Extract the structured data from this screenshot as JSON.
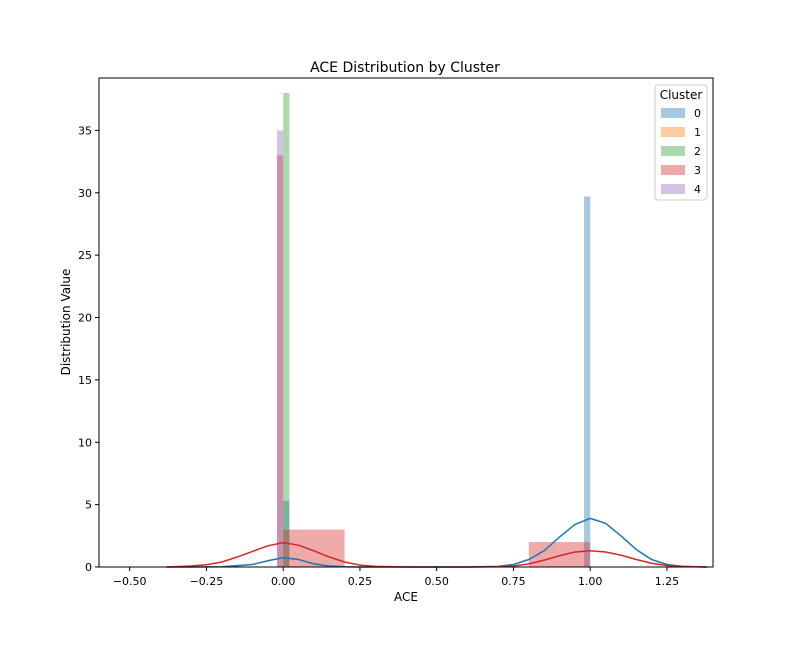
{
  "chart_data": {
    "type": "bar",
    "title": "ACE Distribution by Cluster",
    "xlabel": "ACE",
    "ylabel": "Distribution Value",
    "xlim": [
      -0.6,
      1.4
    ],
    "ylim": [
      0,
      39.2
    ],
    "xticks": [
      -0.5,
      -0.25,
      0.0,
      0.25,
      0.5,
      0.75,
      1.0,
      1.25
    ],
    "xtick_labels": [
      "−0.50",
      "−0.25",
      "0.00",
      "0.25",
      "0.50",
      "0.75",
      "1.00",
      "1.25"
    ],
    "yticks": [
      0,
      5,
      10,
      15,
      20,
      25,
      30,
      35
    ],
    "ytick_labels": [
      "0",
      "5",
      "10",
      "15",
      "20",
      "25",
      "30",
      "35"
    ],
    "grid": false,
    "legend": {
      "title": "Cluster",
      "placement": "top-right",
      "labels": [
        "0",
        "1",
        "2",
        "3",
        "4"
      ]
    },
    "series": [
      {
        "name": "0",
        "color": "#1f77b4",
        "bars": [
          {
            "x0": 0.0,
            "x1": 0.02,
            "height": 5.3
          },
          {
            "x0": 0.98,
            "x1": 1.0,
            "height": 29.7
          }
        ],
        "kde": {
          "x": [
            -0.38,
            -0.3,
            -0.2,
            -0.1,
            -0.05,
            0.0,
            0.05,
            0.1,
            0.15,
            0.2,
            0.25,
            0.35,
            0.5,
            0.6,
            0.7,
            0.75,
            0.8,
            0.85,
            0.9,
            0.95,
            1.0,
            1.05,
            1.1,
            1.15,
            1.2,
            1.25,
            1.3,
            1.38
          ],
          "y": [
            0.0,
            0.0,
            0.02,
            0.2,
            0.5,
            0.75,
            0.6,
            0.25,
            0.08,
            0.02,
            0.0,
            0.0,
            0.0,
            0.0,
            0.05,
            0.2,
            0.6,
            1.3,
            2.4,
            3.4,
            3.9,
            3.5,
            2.5,
            1.4,
            0.6,
            0.2,
            0.05,
            0.0
          ]
        }
      },
      {
        "name": "1",
        "color": "#ff7f0e",
        "bars": [],
        "kde": null
      },
      {
        "name": "2",
        "color": "#2ca02c",
        "bars": [
          {
            "x0": 0.0,
            "x1": 0.02,
            "height": 38.0
          }
        ],
        "kde": null
      },
      {
        "name": "3",
        "color": "#d62728",
        "bars": [
          {
            "x0": -0.02,
            "x1": 0.0,
            "height": 33.0
          },
          {
            "x0": 0.0,
            "x1": 0.2,
            "height": 3.0
          },
          {
            "x0": 0.8,
            "x1": 1.0,
            "height": 2.0
          }
        ],
        "kde": {
          "x": [
            -0.38,
            -0.3,
            -0.25,
            -0.2,
            -0.15,
            -0.1,
            -0.05,
            0.0,
            0.05,
            0.1,
            0.15,
            0.2,
            0.25,
            0.3,
            0.4,
            0.5,
            0.6,
            0.7,
            0.75,
            0.8,
            0.85,
            0.9,
            0.95,
            1.0,
            1.05,
            1.1,
            1.15,
            1.2,
            1.25,
            1.3,
            1.38
          ],
          "y": [
            0.0,
            0.08,
            0.18,
            0.4,
            0.8,
            1.25,
            1.7,
            1.95,
            1.75,
            1.3,
            0.8,
            0.4,
            0.15,
            0.05,
            0.0,
            0.0,
            0.0,
            0.02,
            0.08,
            0.25,
            0.55,
            0.9,
            1.2,
            1.3,
            1.2,
            0.95,
            0.6,
            0.3,
            0.12,
            0.04,
            0.0
          ]
        }
      },
      {
        "name": "4",
        "color": "#9467bd",
        "bars": [
          {
            "x0": -0.02,
            "x1": 0.0,
            "height": 35.0
          }
        ],
        "kde": null
      }
    ]
  }
}
